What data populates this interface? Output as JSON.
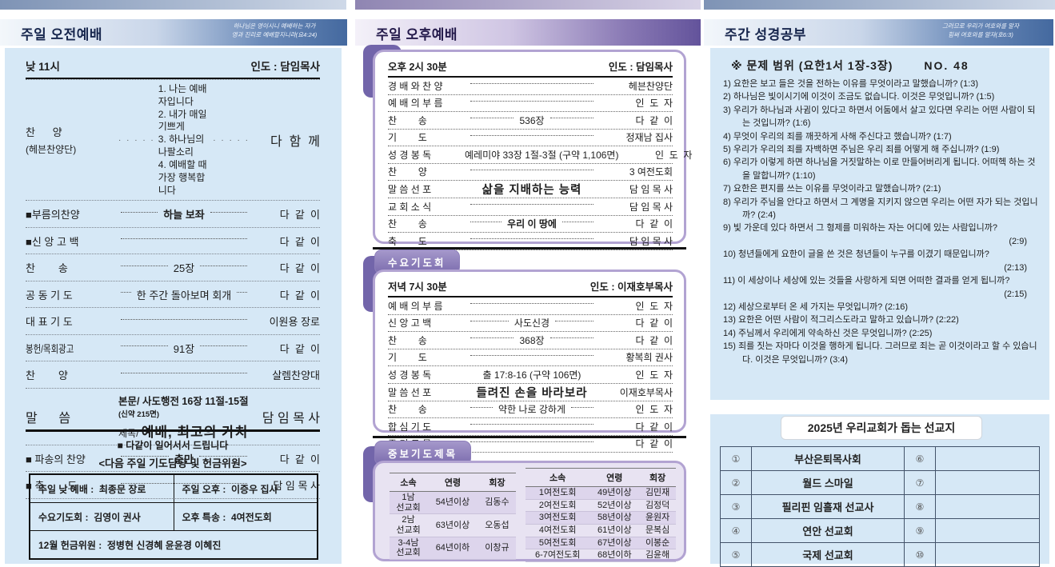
{
  "morning": {
    "title": "주일 오전예배",
    "verse": "하나님은 영이시니 예배하는 자가\n영과 진리로 예배할지니라(요4:24)",
    "time": "낮 11시",
    "leader": "인도 : 담임목사",
    "rows": [
      {
        "type": "praise",
        "label": "찬      양",
        "sub": "(헤븐찬양단)",
        "songs": [
          "1. 나는 예배자입니다",
          "2. 내가 매일 기쁘게",
          "3. 하나님의 나팔소리",
          "4. 예배할 때 가장 행복합니다"
        ],
        "dots": "· · · · ·",
        "right": "다  함  께"
      },
      {
        "label": "■부름의찬양",
        "center": "하늘 보좌",
        "bold": true,
        "right": "다  같  이"
      },
      {
        "label": "■신 앙 고 백",
        "right": "다  같  이"
      },
      {
        "label": "찬        송",
        "center": "25장",
        "right": "다  같  이"
      },
      {
        "label": "공 동 기 도",
        "center": "한 주간 돌아보며 회개",
        "right": "다  같  이"
      },
      {
        "label": "대 표 기 도",
        "right": "이원용 장로"
      },
      {
        "label": "봉헌/목회광고",
        "cond": true,
        "center": "91장",
        "right": "다  같  이"
      },
      {
        "label": "찬        양",
        "right": "살렘찬양대"
      },
      {
        "type": "sermon",
        "label": "말      씀",
        "line1_prefix": "본문/",
        "line1": "사도행전 16장 11절-15절",
        "line1_note": "(신약 215면)",
        "line2_prefix": "제목/",
        "line2": "예배, 최고의 가치",
        "right": "담 임 목 사"
      },
      {
        "label": "■ 파송의 찬양",
        "center": "충만",
        "bold": true,
        "right": "다  같  이"
      },
      {
        "label": "■ 축        도",
        "right": "담 임 목 사"
      }
    ],
    "standing_note": "■  다같이 일어서서 드립니다",
    "next_week_title": "<다음 주일 기도담당 및 헌금위원>",
    "duty_table": {
      "rows": [
        [
          "주일 낮 예배 :  최종문 장로",
          "주일 오후 :  이증우 집사"
        ],
        [
          "수요기도회 :  김영이 권사",
          "오후 특송 :  4여전도회"
        ]
      ],
      "full_row": "12월 헌금위원 :  정병현 신경혜 윤윤경 이혜진"
    }
  },
  "afternoon": {
    "title": "주일 오후예배",
    "time": "오후 2시 30분",
    "leader": "인도 : 담임목사",
    "rows": [
      {
        "label": "경 배 와 찬 양",
        "right": "헤븐찬양단"
      },
      {
        "label": "예 배 의 부 름",
        "right": "인  도  자"
      },
      {
        "label": "찬        송",
        "center": "536장",
        "right": "다  같  이"
      },
      {
        "label": "기        도",
        "right": "정재남 집사"
      },
      {
        "label": "성 경 봉 독",
        "center": "예레미야 33장 1절-3절 (구약 1,106면)",
        "leaders": false,
        "right": "인  도  자"
      },
      {
        "label": "찬        양",
        "right": "3 여전도회"
      },
      {
        "label": "말 씀 선 포",
        "center": "삶을 지배하는 능력",
        "big": true,
        "leaders": false,
        "right": "담 임 목 사"
      },
      {
        "label": "교 회 소 식",
        "right": "담 임 목 사"
      },
      {
        "label": "찬        송",
        "center": "우리 이 땅에",
        "bold": true,
        "right": "다  같  이"
      },
      {
        "label": "축        도",
        "right": "담 임 목 사"
      }
    ]
  },
  "wednesday": {
    "tab_label": "수요기도회",
    "time": "저녁 7시 30분",
    "leader": "인도 : 이재호부목사",
    "rows": [
      {
        "label": "예 배 의 부 름",
        "right": "인  도  자"
      },
      {
        "label": "신 앙 고 백",
        "center": "사도신경",
        "right": "다  같  이"
      },
      {
        "label": "찬        송",
        "center": "368장",
        "right": "다  같  이"
      },
      {
        "label": "기        도",
        "right": "황복희 권사"
      },
      {
        "label": "성 경 봉 독",
        "center": "출 17:8-16 (구약 106면)",
        "leaders": false,
        "right": "인  도  자"
      },
      {
        "label": "말 씀 선 포",
        "center": "들려진 손을 바라보라",
        "big": true,
        "leaders": false,
        "right": "이재호부목사"
      },
      {
        "label": "찬        송",
        "center": "약한 나로 강하게",
        "right": "인  도  자"
      },
      {
        "label": "합 심 기 도",
        "right": "다  같  이"
      },
      {
        "label": "주 기 도 문",
        "right": "다  같  이"
      }
    ]
  },
  "intercession": {
    "tab_label": "중보기도제목",
    "headers": [
      "소속",
      "연령",
      "회장"
    ],
    "left_table": [
      [
        "1남\n선교회",
        "54년이상",
        "김동수"
      ],
      [
        "2남\n선교회",
        "63년이상",
        "오동섭"
      ],
      [
        "3-4남\n선교회",
        "64년이하",
        "이창규"
      ]
    ],
    "right_table": [
      [
        "1여전도회",
        "49년이상",
        "김민재"
      ],
      [
        "2여전도회",
        "52년이상",
        "김정덕"
      ],
      [
        "3여전도회",
        "58년이상",
        "윤원자"
      ],
      [
        "4여전도회",
        "61년이상",
        "문복심"
      ],
      [
        "5여전도회",
        "67년이상",
        "이봉순"
      ],
      [
        "6-7여전도회",
        "68년이하",
        "김윤해"
      ]
    ]
  },
  "study": {
    "title": "주간 성경공부",
    "verse": "그러므로 우리가 여호와를 알자\n힘써 여호와를 알자(호6:3)",
    "range_label": "※ 문제 범위 (요한1서 1장-3장)",
    "no_label": "NO. 48",
    "questions": [
      {
        "t": "1) 요한은 보고 들은 것을 전하는 이유를 무엇이라고 말했습니까? (1:3)"
      },
      {
        "t": "2) 하나님은 빛이시기에 이것이 조금도 없습니다. 이것은 무엇입니까? (1:5)"
      },
      {
        "t": "3) 우리가 하나님과 사귐이 있다고 하면서 어둠에서 살고 있다면 우리는 어떤 사람이 되는 것입니까? (1:6)"
      },
      {
        "t": "4) 무엇이 우리의 죄를 깨끗하게 사해 주신다고 했습니까? (1:7)"
      },
      {
        "t": "5) 우리가 우리의 죄를 자백하면 주님은 우리 죄를 어떻게 해 주십니까? (1:9)"
      },
      {
        "t": "6) 우리가 이렇게 하면 하나님을 거짓말하는 이로 만들어버리게 됩니다. 어떠헥 하는 것을 말합니까? (1:10)"
      },
      {
        "t": "7) 요한은 편지를 쓰는 이유를 무엇이라고 말했습니까? (2:1)"
      },
      {
        "t": "8) 우리가 주님을 안다고 하면서 그 계명을 지키지 않으면 우리는 어떤 자가 되는 것입니까? (2:4)"
      },
      {
        "t": "9) 빛 가운데 있다 하면서 그 형제를 미워하는 자는 어디에 있는 사람입니까?",
        "ref": "(2:9)"
      },
      {
        "t": "10) 청년들에게 요한이 글을 쓴 것은 청년들이 누구를 이겼기 때문입니까?",
        "ref": "(2:13)"
      },
      {
        "t": "11) 이 세상이나 세상에 있는 것들을 사랑하게 되면 어떠한 결과를 얻게 됩니까?",
        "ref": "(2:15)"
      },
      {
        "t": "12) 세상으로부터 온 세 가지는 무엇입니까? (2:16)"
      },
      {
        "t": "13) 요한은 어떤 사람이 적그리스도라고 말하고 있습니까? (2:22)"
      },
      {
        "t": "14) 주님께서 우리에게 약속하신 것은 무엇입니까? (2:25)"
      },
      {
        "t": "15) 죄를 짓는 자마다 이것을 행하게 됩니다. 그러므로 죄는 곧 이것이라고 할 수 있습니다. 이것은 무엇입니까? (3:4)"
      }
    ],
    "missions_title": "2025년 우리교회가 돕는 선교지",
    "missions": [
      {
        "n1": "①",
        "name": "부산은퇴목사회",
        "n2": "⑥",
        "name2": ""
      },
      {
        "n1": "②",
        "name": "월드 스마일",
        "n2": "⑦",
        "name2": ""
      },
      {
        "n1": "③",
        "name": "필리핀 임흘재 선교사",
        "n2": "⑧",
        "name2": ""
      },
      {
        "n1": "④",
        "name": "연안 선교회",
        "n2": "⑨",
        "name2": ""
      },
      {
        "n1": "⑤",
        "name": "국제 선교회",
        "n2": "⑩",
        "name2": ""
      }
    ]
  }
}
